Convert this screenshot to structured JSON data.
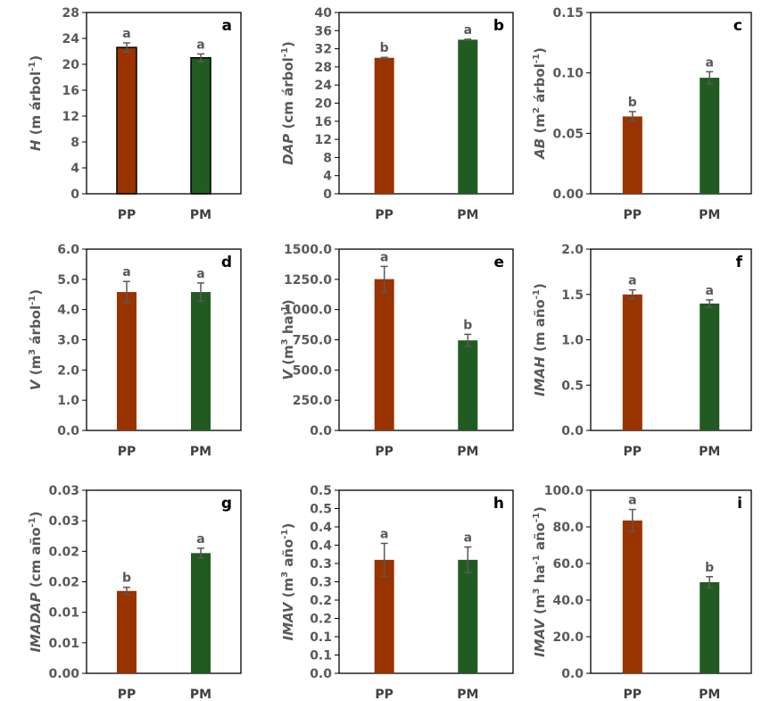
{
  "colors": {
    "pp": "#993300",
    "pm": "#215b21",
    "axis": "#595959",
    "frame": "#000000",
    "err": "#595959"
  },
  "chart_data": [
    {
      "type": "bar",
      "panel_letter": "a",
      "ylabel_italic": "H",
      "ylabel_unit": "m árbol",
      "ylabel_sup": "-1",
      "ylabel_tail": ")",
      "categories": [
        "PP",
        "PM"
      ],
      "values": [
        22.6,
        21.0
      ],
      "errors": [
        0.7,
        0.6
      ],
      "sig_labels": [
        "a",
        "a"
      ],
      "ylim": [
        0,
        28
      ],
      "ticks": [
        "0",
        "4",
        "8",
        "12",
        "16",
        "20",
        "24",
        "28"
      ],
      "tick_values": [
        0,
        4,
        8,
        12,
        16,
        20,
        24,
        28
      ],
      "bar_outline": true
    },
    {
      "type": "bar",
      "panel_letter": "b",
      "ylabel_italic": "DAP",
      "ylabel_unit": "cm árbol",
      "ylabel_sup": "-1",
      "ylabel_tail": ")",
      "categories": [
        "PP",
        "PM"
      ],
      "values": [
        30.0,
        34.0
      ],
      "errors": [
        0.1,
        0.1
      ],
      "sig_labels": [
        "b",
        "a"
      ],
      "ylim": [
        0,
        40
      ],
      "ticks": [
        "0",
        "4",
        "8",
        "12",
        "16",
        "20",
        "24",
        "28",
        "32",
        "36",
        "40"
      ],
      "tick_values": [
        0,
        4,
        8,
        12,
        16,
        20,
        24,
        28,
        32,
        36,
        40
      ],
      "bar_outline": false
    },
    {
      "type": "bar",
      "panel_letter": "c",
      "ylabel_italic": "AB",
      "ylabel_unit": "m",
      "ylabel_sup": "2",
      "ylabel_rest": " árbol",
      "ylabel_sup2": "-1",
      "ylabel_tail": ")",
      "categories": [
        "PP",
        "PM"
      ],
      "values": [
        0.064,
        0.096
      ],
      "errors": [
        0.004,
        0.005
      ],
      "sig_labels": [
        "b",
        "a"
      ],
      "ylim": [
        0,
        0.15
      ],
      "ticks": [
        "0.00",
        "0.05",
        "0.10",
        "0.15"
      ],
      "tick_values": [
        0,
        0.05,
        0.1,
        0.15
      ],
      "bar_outline": false
    },
    {
      "type": "bar",
      "panel_letter": "d",
      "ylabel_italic": "V",
      "ylabel_unit": "m",
      "ylabel_sup": "3",
      "ylabel_rest": " árbol",
      "ylabel_sup2": "-1",
      "ylabel_tail": ")",
      "categories": [
        "PP",
        "PM"
      ],
      "values": [
        4.58,
        4.58
      ],
      "errors": [
        0.35,
        0.3
      ],
      "sig_labels": [
        "a",
        "a"
      ],
      "ylim": [
        0,
        6
      ],
      "ticks": [
        "0.0",
        "1.0",
        "2.0",
        "3.0",
        "4.0",
        "5.0",
        "6.0"
      ],
      "tick_values": [
        0,
        1,
        2,
        3,
        4,
        5,
        6
      ],
      "bar_outline": false
    },
    {
      "type": "bar",
      "panel_letter": "e",
      "ylabel_italic": "V",
      "ylabel_unit": "m",
      "ylabel_sup": "3",
      "ylabel_rest": " ha",
      "ylabel_sup2": "-1",
      "ylabel_tail": ")",
      "categories": [
        "PP",
        "PM"
      ],
      "values": [
        1252,
        745
      ],
      "errors": [
        105,
        50
      ],
      "sig_labels": [
        "a",
        "b"
      ],
      "ylim": [
        0,
        1500
      ],
      "ticks": [
        "0.0",
        "250.0",
        "500.0",
        "750.0",
        "1000.0",
        "1250.0",
        "1500.0"
      ],
      "tick_values": [
        0,
        250,
        500,
        750,
        1000,
        1250,
        1500
      ],
      "bar_outline": false
    },
    {
      "type": "bar",
      "panel_letter": "f",
      "ylabel_italic": "IMAH",
      "ylabel_unit": "m año",
      "ylabel_sup": "-1",
      "ylabel_tail": ")",
      "categories": [
        "PP",
        "PM"
      ],
      "values": [
        1.5,
        1.4
      ],
      "errors": [
        0.05,
        0.04
      ],
      "sig_labels": [
        "a",
        "a"
      ],
      "ylim": [
        0,
        2.0
      ],
      "ticks": [
        "0.0",
        "0.5",
        "1.0",
        "1.5",
        "2.0"
      ],
      "tick_values": [
        0,
        0.5,
        1.0,
        1.5,
        2.0
      ],
      "bar_outline": false
    },
    {
      "type": "bar",
      "panel_letter": "g",
      "ylabel_italic": "IMADAP",
      "ylabel_unit": "cm año",
      "ylabel_sup": "-1",
      "ylabel_tail": ")",
      "categories": [
        "PP",
        "PM"
      ],
      "values": [
        0.0135,
        0.0197
      ],
      "errors": [
        0.0006,
        0.0008
      ],
      "sig_labels": [
        "b",
        "a"
      ],
      "ylim": [
        0,
        0.03
      ],
      "ticks": [
        "0.00",
        "0.01",
        "0.01",
        "0.02",
        "0.02",
        "0.03",
        "0.03"
      ],
      "tick_values": [
        0,
        0.005,
        0.01,
        0.015,
        0.02,
        0.025,
        0.03
      ],
      "bar_outline": false
    },
    {
      "type": "bar",
      "panel_letter": "h",
      "ylabel_italic": "IMAV",
      "ylabel_unit": "m",
      "ylabel_sup": "3",
      "ylabel_rest": " año",
      "ylabel_sup2": "-1",
      "ylabel_tail": ")",
      "categories": [
        "PP",
        "PM"
      ],
      "values": [
        0.31,
        0.31
      ],
      "errors": [
        0.045,
        0.035
      ],
      "sig_labels": [
        "a",
        "a"
      ],
      "ylim": [
        0,
        0.5
      ],
      "ticks": [
        "0.0",
        "0.1",
        "0.1",
        "0.2",
        "0.2",
        "0.3",
        "0.3",
        "0.4",
        "0.4",
        "0.5",
        "0.5"
      ],
      "tick_values": [
        0,
        0.05,
        0.1,
        0.15,
        0.2,
        0.25,
        0.3,
        0.35,
        0.4,
        0.45,
        0.5
      ],
      "bar_outline": false
    },
    {
      "type": "bar",
      "panel_letter": "i",
      "ylabel_italic": "IMAV",
      "ylabel_unit": "m",
      "ylabel_sup": "3",
      "ylabel_rest": " ha",
      "ylabel_sup2": "-1",
      "ylabel_rest2": " año",
      "ylabel_sup3": "-1",
      "ylabel_tail": ")",
      "categories": [
        "PP",
        "PM"
      ],
      "values": [
        83.5,
        49.8
      ],
      "errors": [
        6.0,
        3.0
      ],
      "sig_labels": [
        "a",
        "b"
      ],
      "ylim": [
        0,
        100
      ],
      "ticks": [
        "0.0",
        "20.0",
        "40.0",
        "60.0",
        "80.0",
        "100.0"
      ],
      "tick_values": [
        0,
        20,
        40,
        60,
        80,
        100
      ],
      "bar_outline": false
    }
  ]
}
